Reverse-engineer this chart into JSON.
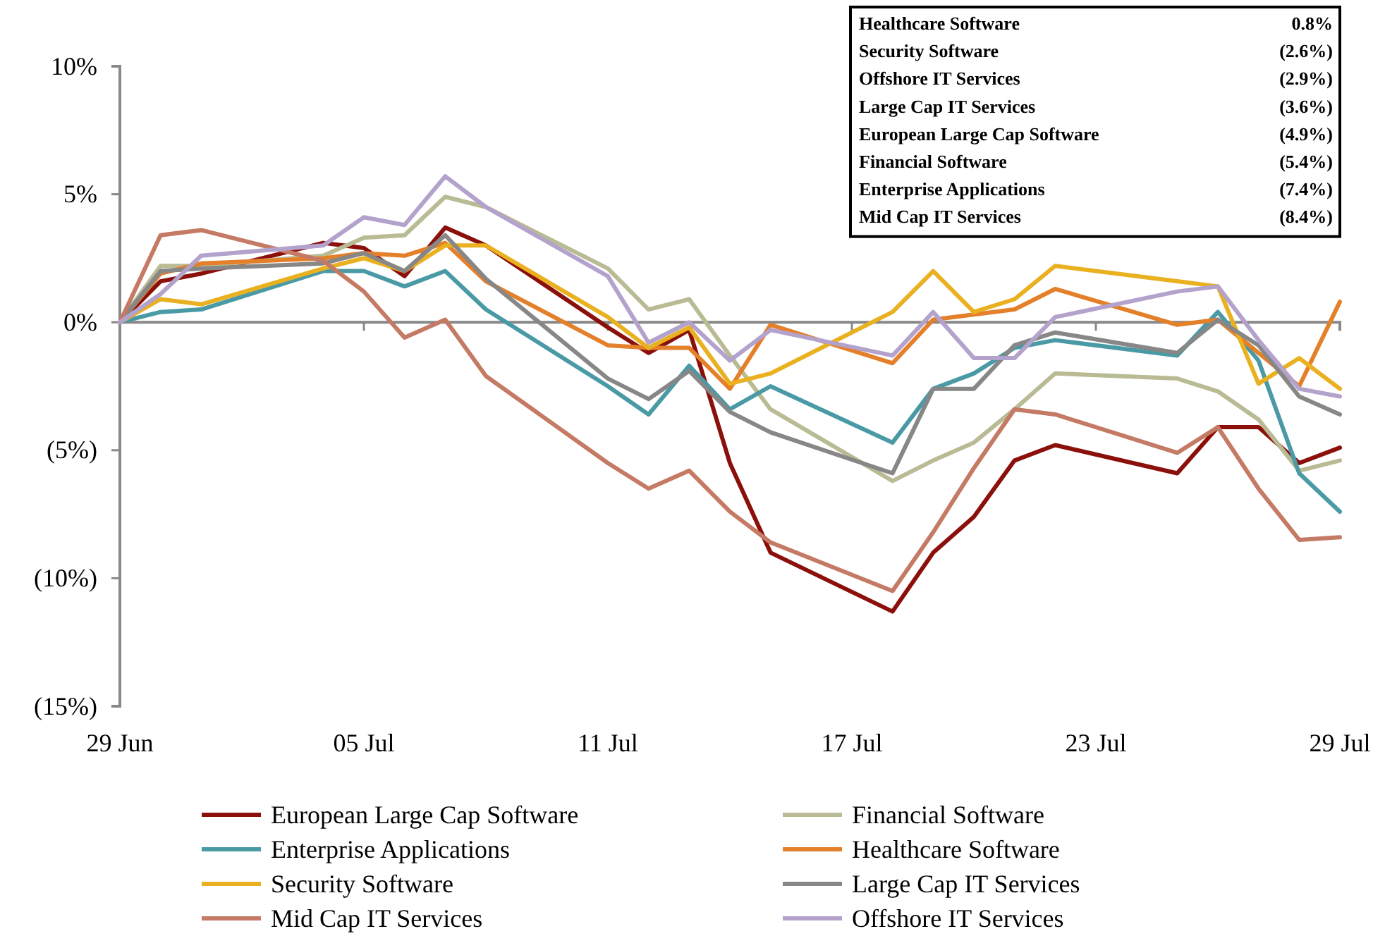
{
  "chart_data": {
    "type": "line",
    "x": [
      "--06-29",
      "--06-30",
      "--07-01",
      "--07-04",
      "--07-05",
      "--07-06",
      "--07-07",
      "--07-08",
      "--07-11",
      "--07-12",
      "--07-13",
      "--07-14",
      "--07-15",
      "--07-18",
      "--07-19",
      "--07-20",
      "--07-21",
      "--07-22",
      "--07-25",
      "--07-26",
      "--07-27",
      "--07-28",
      "--07-29"
    ],
    "xlim": [
      "--06-29",
      "--07-29"
    ],
    "xticks": [
      {
        "value": "--06-29",
        "label": "29 Jun"
      },
      {
        "value": "--07-05",
        "label": "05 Jul"
      },
      {
        "value": "--07-11",
        "label": "11 Jul"
      },
      {
        "value": "--07-17",
        "label": "17 Jul"
      },
      {
        "value": "--07-23",
        "label": "23 Jul"
      },
      {
        "value": "--07-29",
        "label": "29 Jul"
      }
    ],
    "ylim": [
      -15,
      10
    ],
    "yticks": [
      {
        "value": -15,
        "label": "(15%)"
      },
      {
        "value": -10,
        "label": "(10%)"
      },
      {
        "value": -5,
        "label": "(5%)"
      },
      {
        "value": 0,
        "label": "0%"
      },
      {
        "value": 5,
        "label": "5%"
      },
      {
        "value": 10,
        "label": "10%"
      }
    ],
    "grid": false,
    "legend": "bottom",
    "marker": "none",
    "line_style": "solid",
    "annotations": [
      "Healthcare Software",
      "0.8%",
      "Security Software",
      "(2.6%)",
      "Offshore IT Services",
      "(2.9%)",
      "Large Cap IT Services",
      "(3.6%)",
      "European Large Cap Software",
      "(4.9%)",
      "Financial Software",
      "(5.4%)",
      "Enterprise Applications",
      "(7.4%)",
      "Mid Cap IT Services",
      "(8.4%)"
    ],
    "series": [
      {
        "name": "European Large Cap Software",
        "color": "#8b0f0a",
        "values": [
          0,
          1.6,
          1.9,
          3.1,
          2.9,
          1.8,
          3.7,
          3.0,
          -0.2,
          -1.2,
          -0.3,
          -5.5,
          -9.0,
          -11.3,
          -9.0,
          -7.6,
          -5.4,
          -4.8,
          -5.9,
          -4.1,
          -4.1,
          -5.5,
          -4.9
        ]
      },
      {
        "name": "Financial Software",
        "color": "#b9bb94",
        "values": [
          0,
          2.2,
          2.2,
          2.6,
          3.3,
          3.4,
          4.9,
          4.5,
          2.1,
          0.5,
          0.9,
          -1.3,
          -3.4,
          -6.2,
          -5.4,
          -4.7,
          -3.4,
          -2.0,
          -2.2,
          -2.7,
          -3.8,
          -5.8,
          -5.4
        ]
      },
      {
        "name": "Enterprise Applications",
        "color": "#4a9aa6",
        "values": [
          0,
          0.4,
          0.5,
          2.0,
          2.0,
          1.4,
          2.0,
          0.5,
          -2.5,
          -3.6,
          -1.7,
          -3.4,
          -2.5,
          -4.7,
          -2.6,
          -2.0,
          -1.0,
          -0.7,
          -1.3,
          0.4,
          -1.5,
          -5.9,
          -7.4
        ]
      },
      {
        "name": "Healthcare Software",
        "color": "#e47f2a",
        "values": [
          0,
          1.9,
          2.3,
          2.5,
          2.7,
          2.6,
          3.1,
          1.6,
          -0.9,
          -1.0,
          -1.0,
          -2.6,
          -0.1,
          -1.6,
          0.1,
          0.3,
          0.5,
          1.3,
          -0.1,
          0.1,
          -1.2,
          -2.5,
          0.8
        ]
      },
      {
        "name": "Security Software",
        "color": "#e9b020",
        "values": [
          0,
          0.9,
          0.7,
          2.1,
          2.5,
          2.0,
          3.0,
          3.0,
          0.2,
          -1.0,
          -0.2,
          -2.4,
          -2.0,
          0.4,
          2.0,
          0.4,
          0.9,
          2.2,
          1.6,
          1.4,
          -2.4,
          -1.4,
          -2.6
        ]
      },
      {
        "name": "Large Cap IT Services",
        "color": "#878787",
        "values": [
          0,
          2.0,
          2.1,
          2.3,
          2.7,
          2.0,
          3.4,
          1.7,
          -2.2,
          -3.0,
          -1.9,
          -3.5,
          -4.3,
          -5.9,
          -2.6,
          -2.6,
          -0.9,
          -0.4,
          -1.2,
          0.1,
          -0.9,
          -2.9,
          -3.6
        ]
      },
      {
        "name": "Mid Cap IT Services",
        "color": "#c47a64",
        "values": [
          0,
          3.4,
          3.6,
          2.4,
          1.2,
          -0.6,
          0.1,
          -2.1,
          -5.5,
          -6.5,
          -5.8,
          -7.4,
          -8.6,
          -10.5,
          -8.2,
          -5.7,
          -3.4,
          -3.6,
          -5.1,
          -4.1,
          -6.5,
          -8.5,
          -8.4
        ]
      },
      {
        "name": "Offshore IT Services",
        "color": "#b3a2cc",
        "values": [
          0,
          1.1,
          2.6,
          3.0,
          4.1,
          3.8,
          5.7,
          4.5,
          1.8,
          -0.8,
          0.0,
          -1.5,
          -0.3,
          -1.3,
          0.4,
          -1.4,
          -1.4,
          0.2,
          1.2,
          1.4,
          -0.7,
          -2.6,
          -2.9
        ]
      }
    ]
  }
}
